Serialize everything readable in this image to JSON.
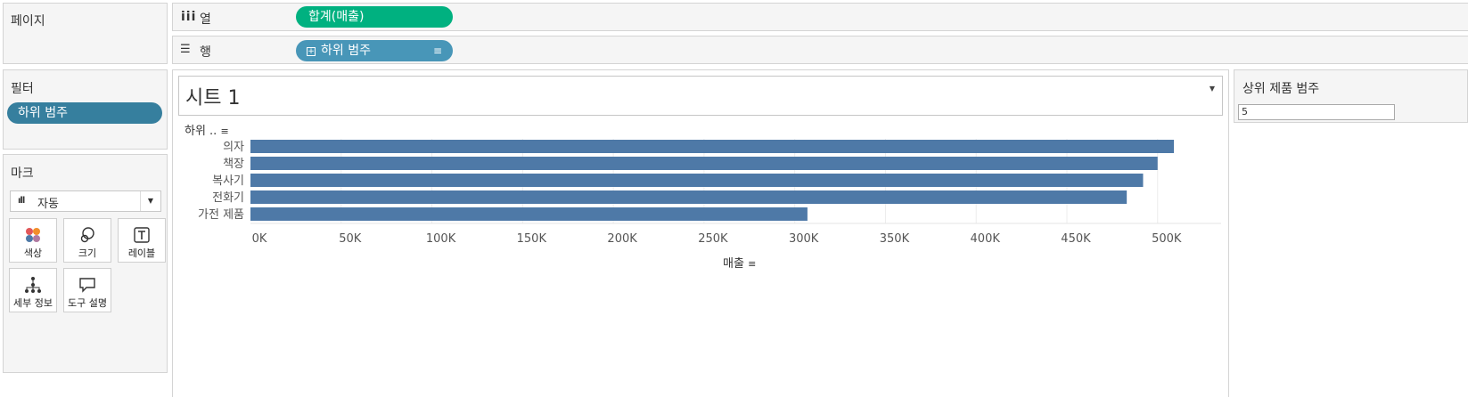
{
  "pages_panel": {
    "title": "페이지"
  },
  "shelves": {
    "columns": {
      "label": "열",
      "pill": "합계(매출)"
    },
    "rows": {
      "label": "행",
      "pill": "하위 범주"
    }
  },
  "filters_panel": {
    "title": "필터",
    "pill": "하위 범주"
  },
  "marks_panel": {
    "title": "마크",
    "type_select": "자동",
    "tiles": [
      {
        "label": "색상",
        "icon": "color-icon"
      },
      {
        "label": "크기",
        "icon": "size-icon"
      },
      {
        "label": "레이블",
        "icon": "label-icon"
      },
      {
        "label": "세부 정보",
        "icon": "detail-icon"
      },
      {
        "label": "도구 설명",
        "icon": "tooltip-icon"
      }
    ]
  },
  "sheet": {
    "title": "시트 1",
    "row_header": "하위 .."
  },
  "parameter": {
    "title": "상위 제품 범주",
    "value": "5"
  },
  "colors": {
    "bar": "#4e79a7",
    "columns_pill": "#00b180",
    "rows_pill": "#4896b8",
    "filter_pill": "#367f9e"
  },
  "chart_data": {
    "type": "bar",
    "orientation": "horizontal",
    "categories": [
      "의자",
      "책장",
      "복사기",
      "전화기",
      "가전 제품"
    ],
    "values": [
      509000,
      500000,
      492000,
      483000,
      307000
    ],
    "xlabel": "매출",
    "ylabel": "하위 ..",
    "xlim": [
      0,
      535000
    ],
    "ticks": [
      0,
      50000,
      100000,
      150000,
      200000,
      250000,
      300000,
      350000,
      400000,
      450000,
      500000
    ],
    "tick_labels": [
      "0K",
      "50K",
      "100K",
      "150K",
      "200K",
      "250K",
      "300K",
      "350K",
      "400K",
      "450K",
      "500K"
    ],
    "grid": true
  }
}
